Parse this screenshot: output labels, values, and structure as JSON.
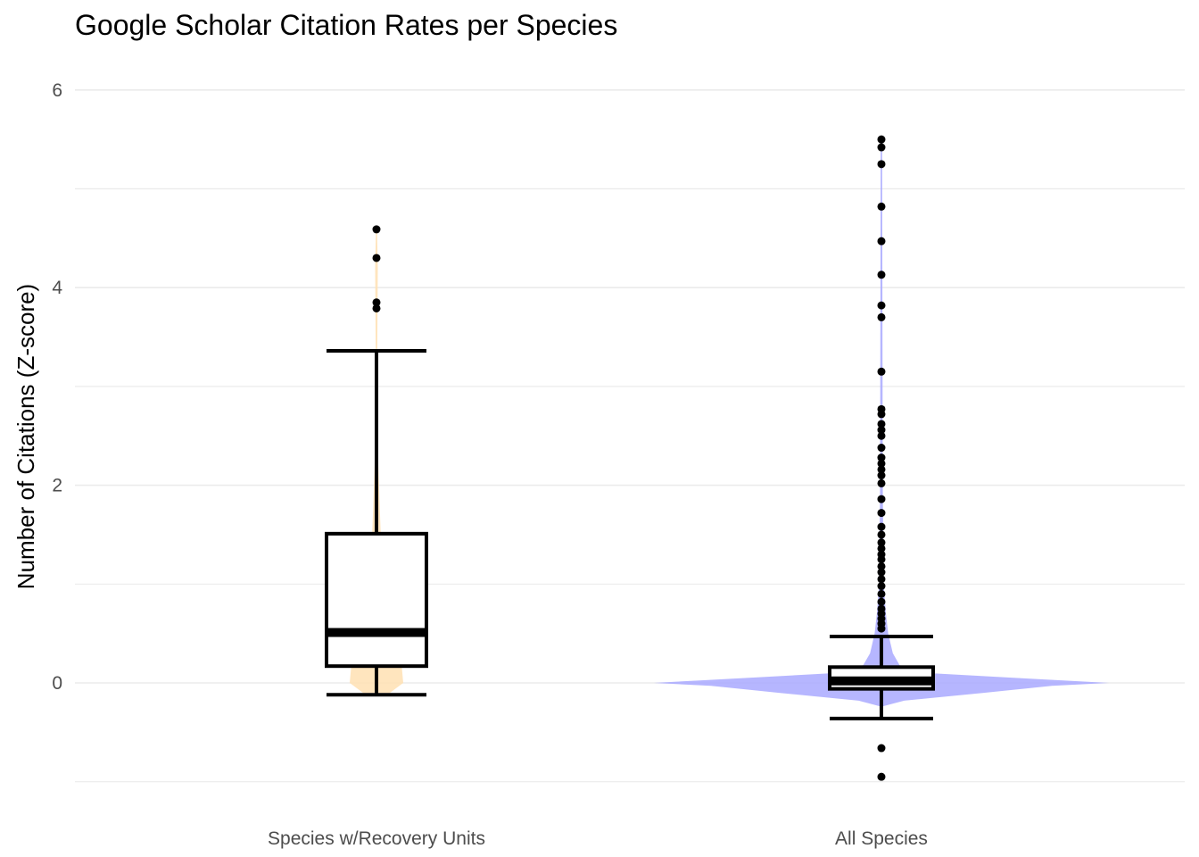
{
  "chart_data": {
    "type": "boxplot",
    "title": "Google Scholar Citation Rates per Species",
    "xlabel": "",
    "ylabel": "Number of Citations (Z-score)",
    "ylim": [
      -1.0,
      6.0
    ],
    "yticks": [
      0,
      2,
      4,
      6
    ],
    "grid": true,
    "legend": "none",
    "categories": [
      "Species w/Recovery Units",
      "All Species"
    ],
    "series": [
      {
        "category": "Species w/Recovery Units",
        "violin_color": "#ffe0b3",
        "min": -0.12,
        "q1": 0.17,
        "median": 0.51,
        "q3": 1.51,
        "max": 3.36,
        "outliers": [
          3.79,
          3.85,
          4.3,
          4.59
        ],
        "density": [
          [
            -0.1,
            0.5
          ],
          [
            0.0,
            1.0
          ],
          [
            0.15,
            0.95
          ],
          [
            0.3,
            0.55
          ],
          [
            0.5,
            0.35
          ],
          [
            0.8,
            0.22
          ],
          [
            1.2,
            0.15
          ],
          [
            1.5,
            0.16
          ],
          [
            1.8,
            0.12
          ],
          [
            2.2,
            0.07
          ],
          [
            2.8,
            0.04
          ],
          [
            3.4,
            0.03
          ],
          [
            3.8,
            0.04
          ],
          [
            4.2,
            0.05
          ],
          [
            4.6,
            0.02
          ]
        ]
      },
      {
        "category": "All Species",
        "violin_color": "#a9a9ff",
        "min": -0.36,
        "q1": -0.06,
        "median": 0.02,
        "q3": 0.16,
        "max": 0.47,
        "outliers": [
          -0.66,
          -0.95,
          0.55,
          0.6,
          0.65,
          0.7,
          0.75,
          0.82,
          0.9,
          0.98,
          1.05,
          1.12,
          1.18,
          1.25,
          1.3,
          1.36,
          1.42,
          1.5,
          1.58,
          1.72,
          1.86,
          2.02,
          2.1,
          2.16,
          2.22,
          2.28,
          2.38,
          2.5,
          2.56,
          2.62,
          2.72,
          2.77,
          3.15,
          3.7,
          3.82,
          4.13,
          4.47,
          4.82,
          5.25,
          5.42,
          5.5
        ],
        "density": [
          [
            -0.24,
            0.0
          ],
          [
            -0.18,
            0.1
          ],
          [
            -0.1,
            0.45
          ],
          [
            -0.03,
            0.75
          ],
          [
            0.0,
            1.0
          ],
          [
            0.05,
            0.6
          ],
          [
            0.1,
            0.2
          ],
          [
            0.18,
            0.08
          ],
          [
            0.3,
            0.05
          ],
          [
            0.5,
            0.03
          ],
          [
            0.7,
            0.02
          ],
          [
            1.0,
            0.01
          ],
          [
            2.0,
            0.006
          ],
          [
            5.5,
            0.003
          ]
        ]
      }
    ]
  }
}
